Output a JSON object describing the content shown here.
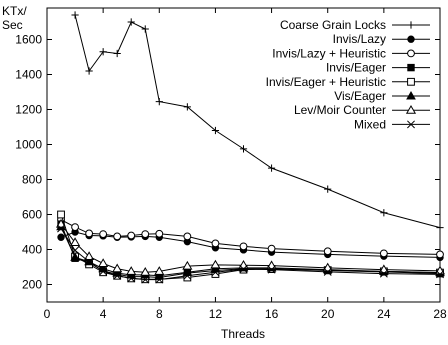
{
  "chart_data": {
    "type": "line",
    "title": "",
    "xlabel": "Threads",
    "ylabel": "KTx/Sec",
    "ylabel_lines": [
      "KTx/",
      "Sec"
    ],
    "xlim": [
      0,
      28
    ],
    "ylim": [
      100,
      1780
    ],
    "xticks": [
      0,
      4,
      8,
      12,
      16,
      20,
      24,
      28
    ],
    "yticks": [
      200,
      400,
      600,
      800,
      1000,
      1200,
      1400,
      1600
    ],
    "grid": false,
    "legend_position": "top-right",
    "series": [
      {
        "name": "Coarse Grain Locks",
        "marker": "plus",
        "x": [
          2,
          3,
          4,
          5,
          6,
          7,
          8,
          10,
          12,
          14,
          16,
          20,
          24,
          28
        ],
        "y": [
          1740,
          1420,
          1530,
          1520,
          1700,
          1660,
          1245,
          1215,
          1080,
          975,
          865,
          745,
          610,
          525
        ]
      },
      {
        "name": "Invis/Lazy",
        "marker": "filled-circle",
        "x": [
          1,
          2,
          3,
          4,
          5,
          6,
          7,
          8,
          10,
          12,
          14,
          16,
          20,
          24,
          28
        ],
        "y": [
          470,
          500,
          480,
          478,
          470,
          472,
          475,
          470,
          445,
          410,
          398,
          385,
          372,
          362,
          355
        ]
      },
      {
        "name": "Invis/Lazy + Heuristic",
        "marker": "open-circle",
        "x": [
          1,
          2,
          3,
          4,
          5,
          6,
          7,
          8,
          10,
          12,
          14,
          16,
          20,
          24,
          28
        ],
        "y": [
          570,
          528,
          492,
          488,
          475,
          480,
          488,
          490,
          475,
          435,
          418,
          405,
          390,
          378,
          372
        ]
      },
      {
        "name": "Invis/Eager",
        "marker": "filled-square",
        "x": [
          1,
          2,
          3,
          4,
          5,
          6,
          7,
          8,
          10,
          12,
          14,
          16,
          20,
          24,
          28
        ],
        "y": [
          545,
          350,
          325,
          278,
          258,
          245,
          245,
          240,
          265,
          280,
          290,
          290,
          280,
          272,
          262
        ]
      },
      {
        "name": "Invis/Eager + Heuristic",
        "marker": "open-square",
        "x": [
          1,
          2,
          3,
          4,
          5,
          6,
          7,
          8,
          10,
          12,
          14,
          16,
          20,
          24,
          28
        ],
        "y": [
          600,
          360,
          315,
          270,
          250,
          235,
          230,
          230,
          240,
          260,
          285,
          288,
          282,
          275,
          268
        ]
      },
      {
        "name": "Vis/Eager",
        "marker": "filled-triangle",
        "x": [
          1,
          2,
          3,
          4,
          5,
          6,
          7,
          8,
          10,
          12,
          14,
          16,
          20,
          24,
          28
        ],
        "y": [
          530,
          355,
          330,
          290,
          265,
          255,
          255,
          250,
          270,
          290,
          295,
          295,
          285,
          275,
          268
        ]
      },
      {
        "name": "Lev/Moir Counter",
        "marker": "open-triangle",
        "x": [
          1,
          2,
          3,
          4,
          5,
          6,
          7,
          8,
          10,
          12,
          14,
          16,
          20,
          24,
          28
        ],
        "y": [
          545,
          440,
          360,
          320,
          290,
          275,
          270,
          275,
          305,
          312,
          310,
          308,
          295,
          285,
          278
        ]
      },
      {
        "name": "Mixed",
        "marker": "cross",
        "x": [
          1,
          2,
          3,
          4,
          5,
          6,
          7,
          8,
          10,
          12,
          14,
          16,
          20,
          24,
          28
        ],
        "y": [
          520,
          395,
          330,
          275,
          250,
          235,
          228,
          228,
          250,
          270,
          288,
          285,
          272,
          262,
          258
        ]
      }
    ]
  }
}
